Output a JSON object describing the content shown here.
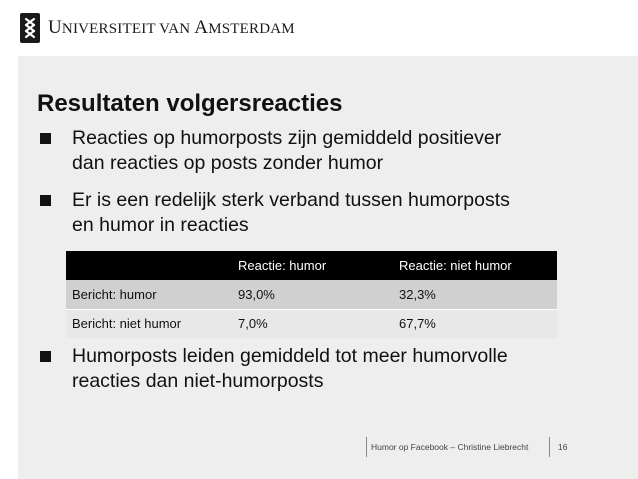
{
  "header": {
    "university_first_letter": "U",
    "university_rest": "NIVERSITEIT VAN ",
    "university_a": "A",
    "university_end": "MSTERDAM"
  },
  "slide": {
    "title": "Resultaten volgersreacties",
    "bullets": [
      {
        "lines": [
          "Reacties op humorposts zijn gemiddeld positiever",
          "dan reacties op posts zonder humor"
        ]
      },
      {
        "lines": [
          "Er is een redelijk sterk verband tussen humorposts",
          "en humor in reacties"
        ]
      },
      {
        "lines": [
          "Humorposts leiden gemiddeld tot meer humorvolle",
          "reacties dan niet-humorposts"
        ]
      }
    ],
    "table": {
      "headers": [
        "",
        "Reactie: humor",
        "Reactie: niet humor"
      ],
      "rows": [
        [
          "Bericht: humor",
          "93,0%",
          "32,3%"
        ],
        [
          "Bericht: niet humor",
          "7,0%",
          "67,7%"
        ]
      ]
    }
  },
  "footer": {
    "presentation": "Humor op Facebook – Christine Liebrecht",
    "page_number": "16"
  },
  "colors": {
    "slide_background": "#eeeeee",
    "table_header": "#000000",
    "table_row_1": "#d0d0d0",
    "table_row_2": "#e8e8e8"
  }
}
